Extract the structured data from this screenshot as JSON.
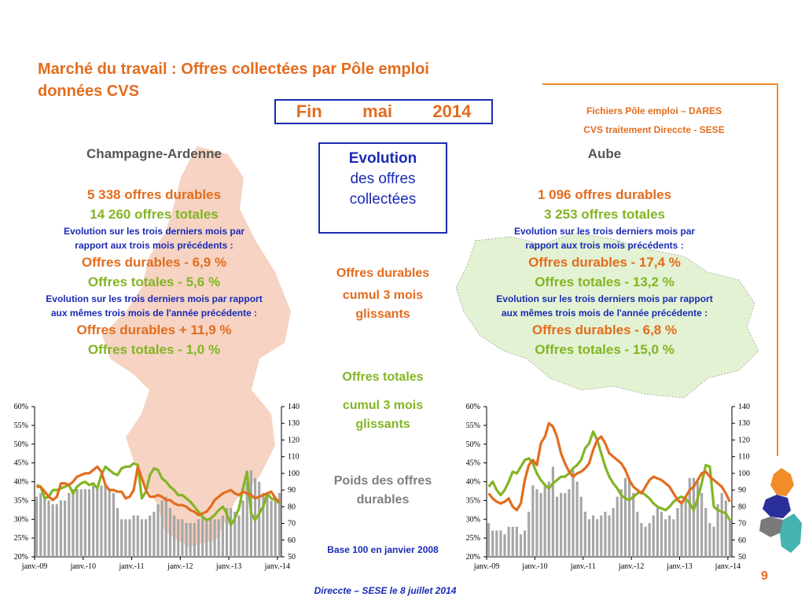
{
  "slide": {
    "title_line1": "Marché du travail : Offres collectées par Pôle emploi",
    "title_line2": "données CVS",
    "fin_words": [
      "Fin",
      "mai",
      "2014"
    ],
    "source_line1": "Fichiers Pôle emploi – DARES",
    "source_line2": "CVS traitement Direccte - SESE",
    "evolution_box": [
      "Evolution",
      "des  offres",
      "collectées"
    ],
    "mid_legend": {
      "durables": [
        "Offres durables",
        "cumul 3 mois",
        "glissants"
      ],
      "totales": [
        "Offres totales",
        "cumul 3 mois",
        "glissants"
      ],
      "poids": [
        "Poids des offres",
        "durables"
      ],
      "base": "Base 100 en janvier 2008"
    },
    "footer": "Direccte – SESE le 8 juillet 2014",
    "page_number": "9"
  },
  "left": {
    "region": "Champagne-Ardenne",
    "durables": "5 338 offres durables",
    "totales": "14 260 offres totales",
    "evo3_text": "Evolution sur les trois derniers mois par rapport aux trois mois précédents :",
    "evo3_durables": "Offres durables -  6,9 %",
    "evo3_totales": "Offres totales -  5,6 %",
    "evoY_text": "Evolution sur les trois derniers mois par rapport aux mêmes trois mois de l'année précédente  :",
    "evoY_durables": "Offres durables +  11,9 %",
    "evoY_totales": "Offres totales -  1,0 %"
  },
  "right": {
    "region": "Aube",
    "durables": "1 096 offres durables",
    "totales": "3 253 offres totales",
    "evo3_text": "Evolution sur les trois derniers mois par rapport aux trois mois précédents :",
    "evo3_durables": "Offres durables -  17,4 %",
    "evo3_totales": "Offres totales -  13,2 %",
    "evoY_text": "Evolution sur les trois derniers mois par rapport aux mêmes trois mois de l'année précédente  :",
    "evoY_durables": "Offres durables -  6,8 %",
    "evoY_totales": "Offres totales -  15,0 %"
  },
  "colors": {
    "orange": "#e36c1e",
    "green": "#82b523",
    "blue": "#1a2bb5",
    "bars": "#a6a6a6",
    "map_left": "#f6d3c2",
    "map_right": "#e3f2d2"
  },
  "chart_data": [
    {
      "type": "bar+line",
      "region": "Champagne-Ardenne",
      "x_tick_labels": [
        "janv.-09",
        "janv.-10",
        "janv.-11",
        "janv.-12",
        "janv.-13",
        "janv.-14"
      ],
      "y_left": {
        "ticks": [
          "20%",
          "25%",
          "30%",
          "35%",
          "40%",
          "45%",
          "50%",
          "55%",
          "60%"
        ],
        "range": [
          20,
          60
        ]
      },
      "y_right": {
        "ticks": [
          "50",
          "60",
          "70",
          "80",
          "90",
          "100",
          "110",
          "120",
          "130",
          "140"
        ],
        "range": [
          50,
          140
        ]
      },
      "bars_pct": [
        36,
        37,
        36,
        35,
        34,
        34,
        35,
        35,
        37,
        38,
        38,
        38,
        38,
        38,
        39,
        38,
        39,
        39,
        38,
        37,
        33,
        30,
        30,
        30,
        31,
        31,
        30,
        30,
        31,
        32,
        34,
        35,
        36,
        33,
        31,
        30,
        30,
        29,
        29,
        29,
        30,
        31,
        30,
        30,
        30,
        30,
        31,
        33,
        33,
        32,
        31,
        35,
        40,
        43,
        41,
        40,
        37,
        37,
        35,
        36,
        37
      ],
      "durables_idx": [
        92,
        92,
        89,
        86,
        84,
        86,
        94,
        94,
        93,
        95,
        98,
        99,
        100,
        100,
        102,
        104,
        101,
        93,
        90,
        90,
        89,
        89,
        85,
        86,
        90,
        104,
        97,
        90,
        86,
        86,
        87,
        86,
        84,
        84,
        82,
        81,
        81,
        80,
        78,
        77,
        75,
        76,
        77,
        80,
        84,
        86,
        88,
        89,
        90,
        88,
        87,
        89,
        88,
        87,
        85,
        86,
        87,
        88,
        89,
        85,
        83
      ],
      "totales_idx": [
        93,
        92,
        85,
        86,
        90,
        90,
        91,
        92,
        93,
        88,
        92,
        94,
        95,
        93,
        94,
        91,
        99,
        104,
        102,
        100,
        99,
        103,
        104,
        104,
        106,
        105,
        85,
        89,
        99,
        103,
        102,
        97,
        95,
        92,
        90,
        87,
        87,
        85,
        83,
        80,
        77,
        74,
        72,
        73,
        75,
        78,
        80,
        76,
        69,
        73,
        79,
        91,
        101,
        76,
        72,
        76,
        80,
        88,
        85,
        84,
        82
      ]
    },
    {
      "type": "bar+line",
      "region": "Aube",
      "x_tick_labels": [
        "janv.-09",
        "janv.-10",
        "janv.-11",
        "janv.-12",
        "janv.-13",
        "janv.-14"
      ],
      "y_left": {
        "ticks": [
          "20%",
          "25%",
          "30%",
          "35%",
          "40%",
          "45%",
          "50%",
          "55%",
          "60%"
        ],
        "range": [
          20,
          60
        ]
      },
      "y_right": {
        "ticks": [
          "50",
          "60",
          "70",
          "80",
          "90",
          "100",
          "110",
          "120",
          "130",
          "140"
        ],
        "range": [
          50,
          140
        ]
      },
      "bars_pct": [
        29,
        27,
        27,
        27,
        26,
        28,
        28,
        28,
        26,
        27,
        32,
        39,
        38,
        37,
        39,
        40,
        44,
        36,
        37,
        37,
        38,
        43,
        40,
        36,
        32,
        30,
        31,
        30,
        31,
        32,
        31,
        33,
        36,
        38,
        41,
        41,
        37,
        32,
        29,
        28,
        29,
        31,
        33,
        32,
        30,
        31,
        30,
        33,
        35,
        36,
        41,
        41,
        40,
        37,
        33,
        29,
        28,
        34,
        37,
        35,
        30
      ],
      "durables_idx": [
        88,
        85,
        83,
        82,
        83,
        85,
        80,
        78,
        82,
        96,
        105,
        108,
        105,
        118,
        122,
        130,
        128,
        122,
        112,
        106,
        101,
        98,
        100,
        101,
        103,
        106,
        114,
        120,
        122,
        118,
        112,
        110,
        108,
        106,
        102,
        96,
        92,
        90,
        88,
        92,
        96,
        98,
        97,
        96,
        94,
        92,
        88,
        84,
        82,
        86,
        90,
        92,
        96,
        100,
        101,
        98,
        96,
        94,
        92,
        88,
        83
      ],
      "totales_idx": [
        92,
        95,
        90,
        87,
        90,
        95,
        101,
        100,
        104,
        108,
        109,
        106,
        100,
        96,
        93,
        91,
        94,
        96,
        98,
        98,
        100,
        103,
        105,
        108,
        115,
        118,
        125,
        120,
        112,
        104,
        98,
        94,
        91,
        87,
        85,
        84,
        86,
        88,
        89,
        87,
        85,
        82,
        80,
        79,
        78,
        80,
        83,
        85,
        86,
        85,
        82,
        78,
        85,
        94,
        105,
        104,
        80,
        78,
        77,
        76,
        72
      ]
    }
  ]
}
